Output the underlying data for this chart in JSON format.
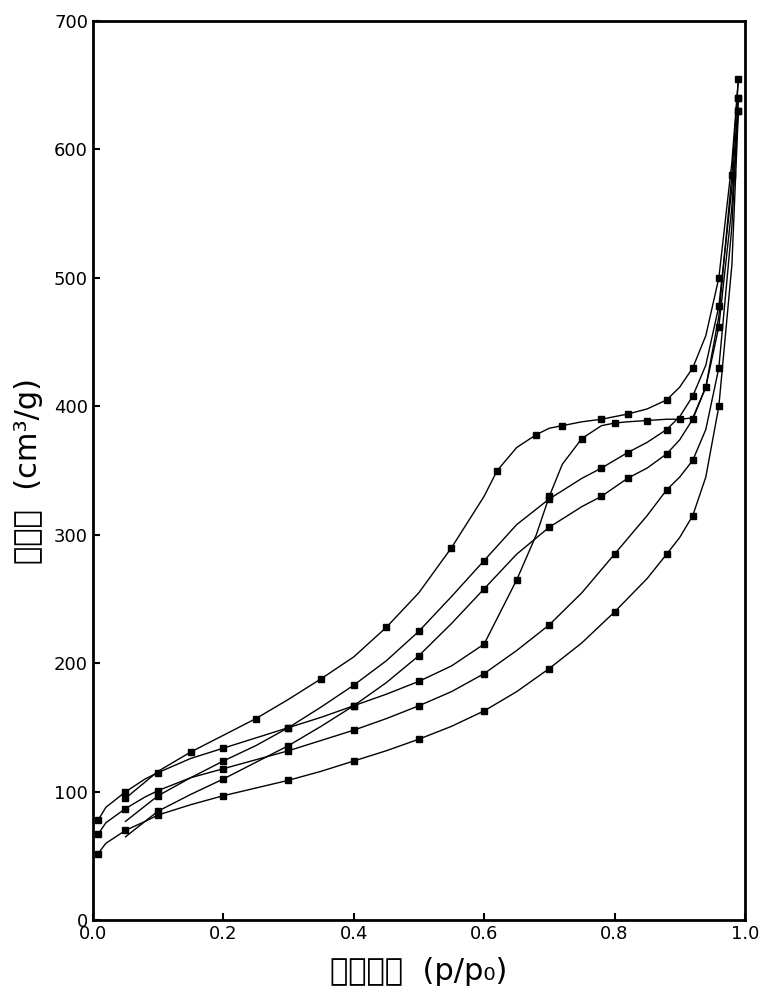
{
  "xlim": [
    0.0,
    1.0
  ],
  "ylim": [
    0,
    700
  ],
  "xticks": [
    0.0,
    0.2,
    0.4,
    0.6,
    0.8,
    1.0
  ],
  "yticks": [
    0,
    100,
    200,
    300,
    400,
    500,
    600,
    700
  ],
  "xticklabels": [
    "0.0",
    "0.2",
    "0.4",
    "0.6",
    "0.8",
    "1.0"
  ],
  "yticklabels": [
    "0",
    "100",
    "200",
    "300",
    "400",
    "500",
    "600",
    "700"
  ],
  "background_color": "#ffffff",
  "ylabel_chinese": "吸附量",
  "ylabel_unit": "(cm³/g)",
  "xlabel_chinese": "相对压力",
  "xlabel_unit": "(p/p₀)",
  "series": [
    {
      "name": "s1_ads",
      "x": [
        0.008,
        0.02,
        0.05,
        0.08,
        0.1,
        0.15,
        0.2,
        0.25,
        0.3,
        0.35,
        0.4,
        0.45,
        0.5,
        0.55,
        0.6,
        0.62,
        0.65,
        0.68,
        0.7,
        0.72,
        0.75,
        0.78,
        0.8,
        0.82,
        0.85,
        0.88,
        0.9,
        0.92,
        0.94,
        0.96,
        0.98,
        0.99
      ],
      "y": [
        78,
        88,
        100,
        110,
        115,
        126,
        134,
        142,
        150,
        158,
        167,
        176,
        186,
        198,
        215,
        235,
        265,
        300,
        330,
        355,
        375,
        385,
        387,
        388,
        389,
        390,
        390,
        391,
        415,
        470,
        580,
        655
      ]
    },
    {
      "name": "s1_des",
      "x": [
        0.99,
        0.98,
        0.96,
        0.94,
        0.92,
        0.9,
        0.88,
        0.85,
        0.82,
        0.8,
        0.78,
        0.75,
        0.72,
        0.7,
        0.68,
        0.65,
        0.62,
        0.6,
        0.55,
        0.5,
        0.45,
        0.4,
        0.35,
        0.3,
        0.25,
        0.2,
        0.15,
        0.1,
        0.05
      ],
      "y": [
        655,
        590,
        500,
        455,
        430,
        415,
        405,
        398,
        394,
        392,
        390,
        388,
        385,
        383,
        378,
        368,
        350,
        330,
        290,
        255,
        228,
        205,
        188,
        172,
        157,
        144,
        131,
        116,
        95
      ]
    },
    {
      "name": "s2_ads",
      "x": [
        0.008,
        0.02,
        0.05,
        0.08,
        0.1,
        0.15,
        0.2,
        0.25,
        0.3,
        0.35,
        0.4,
        0.45,
        0.5,
        0.55,
        0.6,
        0.65,
        0.7,
        0.75,
        0.8,
        0.85,
        0.88,
        0.9,
        0.92,
        0.94,
        0.96,
        0.98,
        0.99
      ],
      "y": [
        67,
        76,
        87,
        96,
        101,
        111,
        118,
        125,
        132,
        140,
        148,
        157,
        167,
        178,
        192,
        210,
        230,
        255,
        285,
        315,
        335,
        345,
        358,
        382,
        430,
        540,
        640
      ]
    },
    {
      "name": "s2_des",
      "x": [
        0.99,
        0.98,
        0.96,
        0.94,
        0.92,
        0.9,
        0.88,
        0.85,
        0.82,
        0.8,
        0.78,
        0.75,
        0.7,
        0.65,
        0.6,
        0.55,
        0.5,
        0.45,
        0.4,
        0.35,
        0.3,
        0.25,
        0.2,
        0.15,
        0.1,
        0.05
      ],
      "y": [
        640,
        570,
        478,
        432,
        408,
        392,
        382,
        372,
        364,
        358,
        352,
        344,
        328,
        308,
        280,
        252,
        225,
        202,
        183,
        166,
        150,
        136,
        124,
        111,
        97,
        77
      ]
    },
    {
      "name": "s3_ads",
      "x": [
        0.008,
        0.02,
        0.05,
        0.08,
        0.1,
        0.15,
        0.2,
        0.25,
        0.3,
        0.35,
        0.4,
        0.45,
        0.5,
        0.55,
        0.6,
        0.65,
        0.7,
        0.75,
        0.8,
        0.85,
        0.88,
        0.9,
        0.92,
        0.94,
        0.96,
        0.98,
        0.99
      ],
      "y": [
        52,
        60,
        70,
        77,
        82,
        90,
        97,
        103,
        109,
        116,
        124,
        132,
        141,
        151,
        163,
        178,
        196,
        216,
        240,
        266,
        285,
        298,
        315,
        345,
        400,
        510,
        630
      ]
    },
    {
      "name": "s3_des",
      "x": [
        0.99,
        0.98,
        0.96,
        0.94,
        0.92,
        0.9,
        0.88,
        0.85,
        0.82,
        0.8,
        0.78,
        0.75,
        0.7,
        0.65,
        0.6,
        0.55,
        0.5,
        0.45,
        0.4,
        0.35,
        0.3,
        0.25,
        0.2,
        0.15,
        0.1,
        0.05
      ],
      "y": [
        630,
        555,
        462,
        415,
        390,
        374,
        363,
        352,
        344,
        337,
        330,
        322,
        306,
        285,
        258,
        231,
        206,
        185,
        167,
        151,
        136,
        123,
        110,
        98,
        85,
        65
      ]
    }
  ]
}
